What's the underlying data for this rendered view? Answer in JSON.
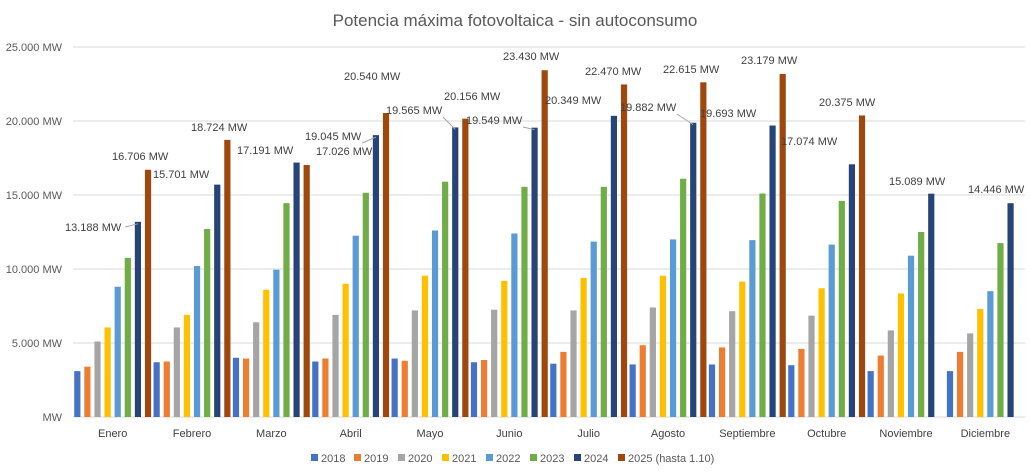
{
  "chart_data": {
    "type": "bar",
    "title": "Potencia máxima fotovoltaica - sin autoconsumo",
    "xlabel": "",
    "ylabel": "",
    "ylim": [
      0,
      25000
    ],
    "y_ticks": [
      "MW",
      "5.000 MW",
      "10.000 MW",
      "15.000 MW",
      "20.000 MW",
      "25.000 MW"
    ],
    "y_tick_values": [
      0,
      5000,
      10000,
      15000,
      20000,
      25000
    ],
    "grid": true,
    "legend_position": "bottom",
    "categories": [
      "Enero",
      "Febrero",
      "Marzo",
      "Abril",
      "Mayo",
      "Junio",
      "Julio",
      "Agosto",
      "Septiembre",
      "Octubre",
      "Noviembre",
      "Diciembre"
    ],
    "series": [
      {
        "name": "2018",
        "color": "#4472c4",
        "values": [
          3100,
          3700,
          4000,
          3750,
          3950,
          3700,
          3600,
          3550,
          3550,
          3500,
          3100,
          3100
        ]
      },
      {
        "name": "2019",
        "color": "#ed7d31",
        "values": [
          3400,
          3750,
          3950,
          3950,
          3800,
          3850,
          4400,
          4850,
          4700,
          4600,
          4150,
          4400
        ]
      },
      {
        "name": "2020",
        "color": "#a5a5a5",
        "values": [
          5100,
          6050,
          6400,
          6900,
          7200,
          7250,
          7200,
          7400,
          7150,
          6850,
          5850,
          5650
        ]
      },
      {
        "name": "2021",
        "color": "#ffc000",
        "values": [
          6050,
          6900,
          8600,
          9000,
          9550,
          9200,
          9400,
          9550,
          9150,
          8700,
          8350,
          7300
        ]
      },
      {
        "name": "2022",
        "color": "#5b9bd5",
        "values": [
          8800,
          10200,
          9950,
          12250,
          12600,
          12400,
          11850,
          12000,
          11950,
          11650,
          10900,
          8500
        ]
      },
      {
        "name": "2023",
        "color": "#70ad47",
        "values": [
          10750,
          12700,
          14450,
          15150,
          15900,
          15550,
          15550,
          16100,
          15100,
          14600,
          12500,
          11750
        ]
      },
      {
        "name": "2024",
        "color": "#264478",
        "values": [
          13188,
          15701,
          17191,
          19045,
          19565,
          19549,
          20349,
          19882,
          19693,
          17074,
          15089,
          14446
        ]
      },
      {
        "name": "2025 (hasta 1.10)",
        "color": "#9e480e",
        "values": [
          16706,
          18724,
          17026,
          20540,
          20156,
          23430,
          22470,
          22615,
          23179,
          20375,
          null,
          null
        ]
      }
    ],
    "data_labels": {
      "2024": [
        "13.188 MW",
        "15.701 MW",
        "17.191 MW",
        "19.045 MW",
        "19.565 MW",
        "19.549 MW",
        "20.349 MW",
        "19.882 MW",
        "19.693 MW",
        "17.074 MW",
        "15.089 MW",
        "14.446 MW"
      ],
      "2025 (hasta 1.10)": [
        "16.706 MW",
        "18.724 MW",
        "17.026 MW",
        "20.540 MW",
        "20.156 MW",
        "23.430 MW",
        "22.470 MW",
        "22.615 MW",
        "23.179 MW",
        "20.375 MW",
        null,
        null
      ]
    }
  }
}
